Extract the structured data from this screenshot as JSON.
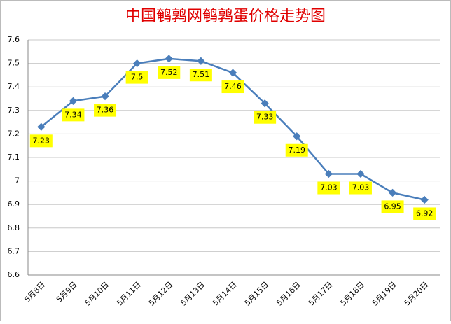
{
  "chart_data": {
    "type": "line",
    "title": "中国鹌鹑网鹌鹑蛋价格走势图",
    "categories": [
      "5月8日",
      "5月9日",
      "5月10日",
      "5月11日",
      "5月12日",
      "5月13日",
      "5月14日",
      "5月15日",
      "5月16日",
      "5月17日",
      "5月18日",
      "5月19日",
      "5月20日"
    ],
    "values": [
      7.23,
      7.34,
      7.36,
      7.5,
      7.52,
      7.51,
      7.46,
      7.33,
      7.19,
      7.03,
      7.03,
      6.95,
      6.92
    ],
    "color": "#4a7ebb",
    "label_color": "#ffff00",
    "ylim": [
      6.6,
      7.6
    ],
    "yticks": [
      6.6,
      6.7,
      6.8,
      6.9,
      7,
      7.1,
      7.2,
      7.3,
      7.4,
      7.5,
      7.6
    ],
    "grid": true
  }
}
